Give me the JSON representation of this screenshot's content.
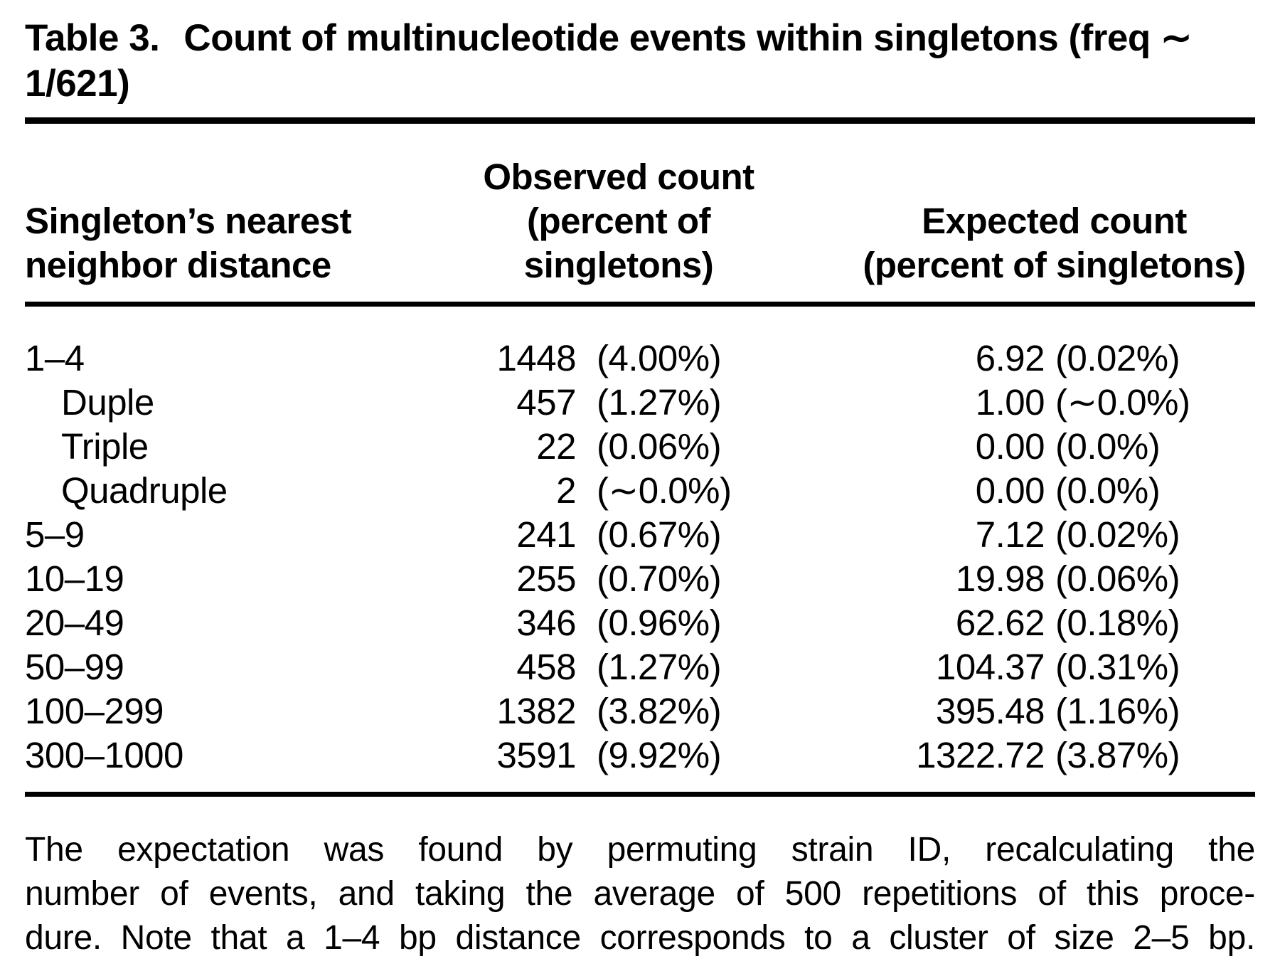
{
  "caption": {
    "table_number": "Table 3.",
    "title_line1": "Count of multinucleotide events within singletons (freq ∼",
    "title_line2": "1/621)"
  },
  "header": {
    "distance_col": {
      "line1": "Singleton’s nearest",
      "line2": "neighbor distance"
    },
    "observed_col": {
      "line1": "Observed count",
      "line2": "(percent of",
      "line3": "singletons)"
    },
    "expected_col": {
      "line1": "Expected count",
      "line2": "(percent of singletons)"
    }
  },
  "rows": [
    {
      "label": "1–4",
      "obs_count": "1448",
      "obs_pct": "(4.00%)",
      "exp_count": "6.92",
      "exp_pct": "(0.02%)"
    },
    {
      "label": "Duple",
      "obs_count": "457",
      "obs_pct": "(1.27%)",
      "exp_count": "1.00",
      "exp_pct": "(∼0.0%)"
    },
    {
      "label": "Triple",
      "obs_count": "22",
      "obs_pct": "(0.06%)",
      "exp_count": "0.00",
      "exp_pct": "(0.0%)"
    },
    {
      "label": "Quadruple",
      "obs_count": "2",
      "obs_pct": "(∼0.0%)",
      "exp_count": "0.00",
      "exp_pct": "(0.0%)"
    },
    {
      "label": "5–9",
      "obs_count": "241",
      "obs_pct": "(0.67%)",
      "exp_count": "7.12",
      "exp_pct": "(0.02%)"
    },
    {
      "label": "10–19",
      "obs_count": "255",
      "obs_pct": "(0.70%)",
      "exp_count": "19.98",
      "exp_pct": "(0.06%)"
    },
    {
      "label": "20–49",
      "obs_count": "346",
      "obs_pct": "(0.96%)",
      "exp_count": "62.62",
      "exp_pct": "(0.18%)"
    },
    {
      "label": "50–99",
      "obs_count": "458",
      "obs_pct": "(1.27%)",
      "exp_count": "104.37",
      "exp_pct": "(0.31%)"
    },
    {
      "label": "100–299",
      "obs_count": "1382",
      "obs_pct": "(3.82%)",
      "exp_count": "395.48",
      "exp_pct": "(1.16%)"
    },
    {
      "label": "300–1000",
      "obs_count": "3591",
      "obs_pct": "(9.92%)",
      "exp_count": "1322.72",
      "exp_pct": "(3.87%)"
    }
  ],
  "footnote": {
    "line1": "The expectation was found by permuting strain ID, recalculating the",
    "line2": "number of events, and taking the average of 500 repetitions of this proce-",
    "line3": "dure. Note that a 1–4 bp distance corresponds to a cluster of size 2–5 bp."
  }
}
